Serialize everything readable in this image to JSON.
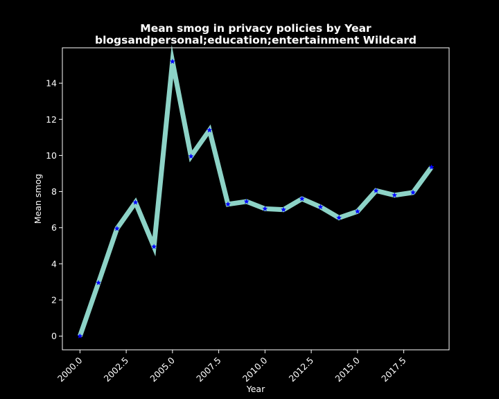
{
  "chart_data": {
    "type": "line",
    "title_line1": "Mean smog in privacy policies by Year",
    "title_line2": "blogsandpersonal;education;entertainment Wildcard",
    "xlabel": "Year",
    "ylabel": "Mean smog",
    "xlim": [
      1999.05,
      2019.95
    ],
    "ylim": [
      -0.76,
      15.96
    ],
    "x_ticks": [
      "2000.0",
      "2002.5",
      "2005.0",
      "2007.5",
      "2010.0",
      "2012.5",
      "2015.0",
      "2017.5"
    ],
    "y_ticks": [
      "0",
      "2",
      "4",
      "6",
      "8",
      "10",
      "12",
      "14"
    ],
    "grid": false,
    "line_color": "#8dd3c7",
    "marker_color": "#0000ff",
    "marker": "star",
    "series": [
      {
        "x": [
          2000,
          2001,
          2002,
          2003,
          2004,
          2005,
          2006,
          2007,
          2008,
          2009,
          2010,
          2011,
          2012,
          2013,
          2014,
          2015,
          2016,
          2017,
          2018,
          2019
        ],
        "y": [
          0.0,
          2.95,
          5.95,
          7.4,
          4.95,
          15.2,
          9.95,
          11.4,
          7.3,
          7.45,
          7.05,
          7.0,
          7.6,
          7.15,
          6.55,
          6.9,
          8.05,
          7.8,
          7.95,
          9.35
        ]
      }
    ]
  }
}
